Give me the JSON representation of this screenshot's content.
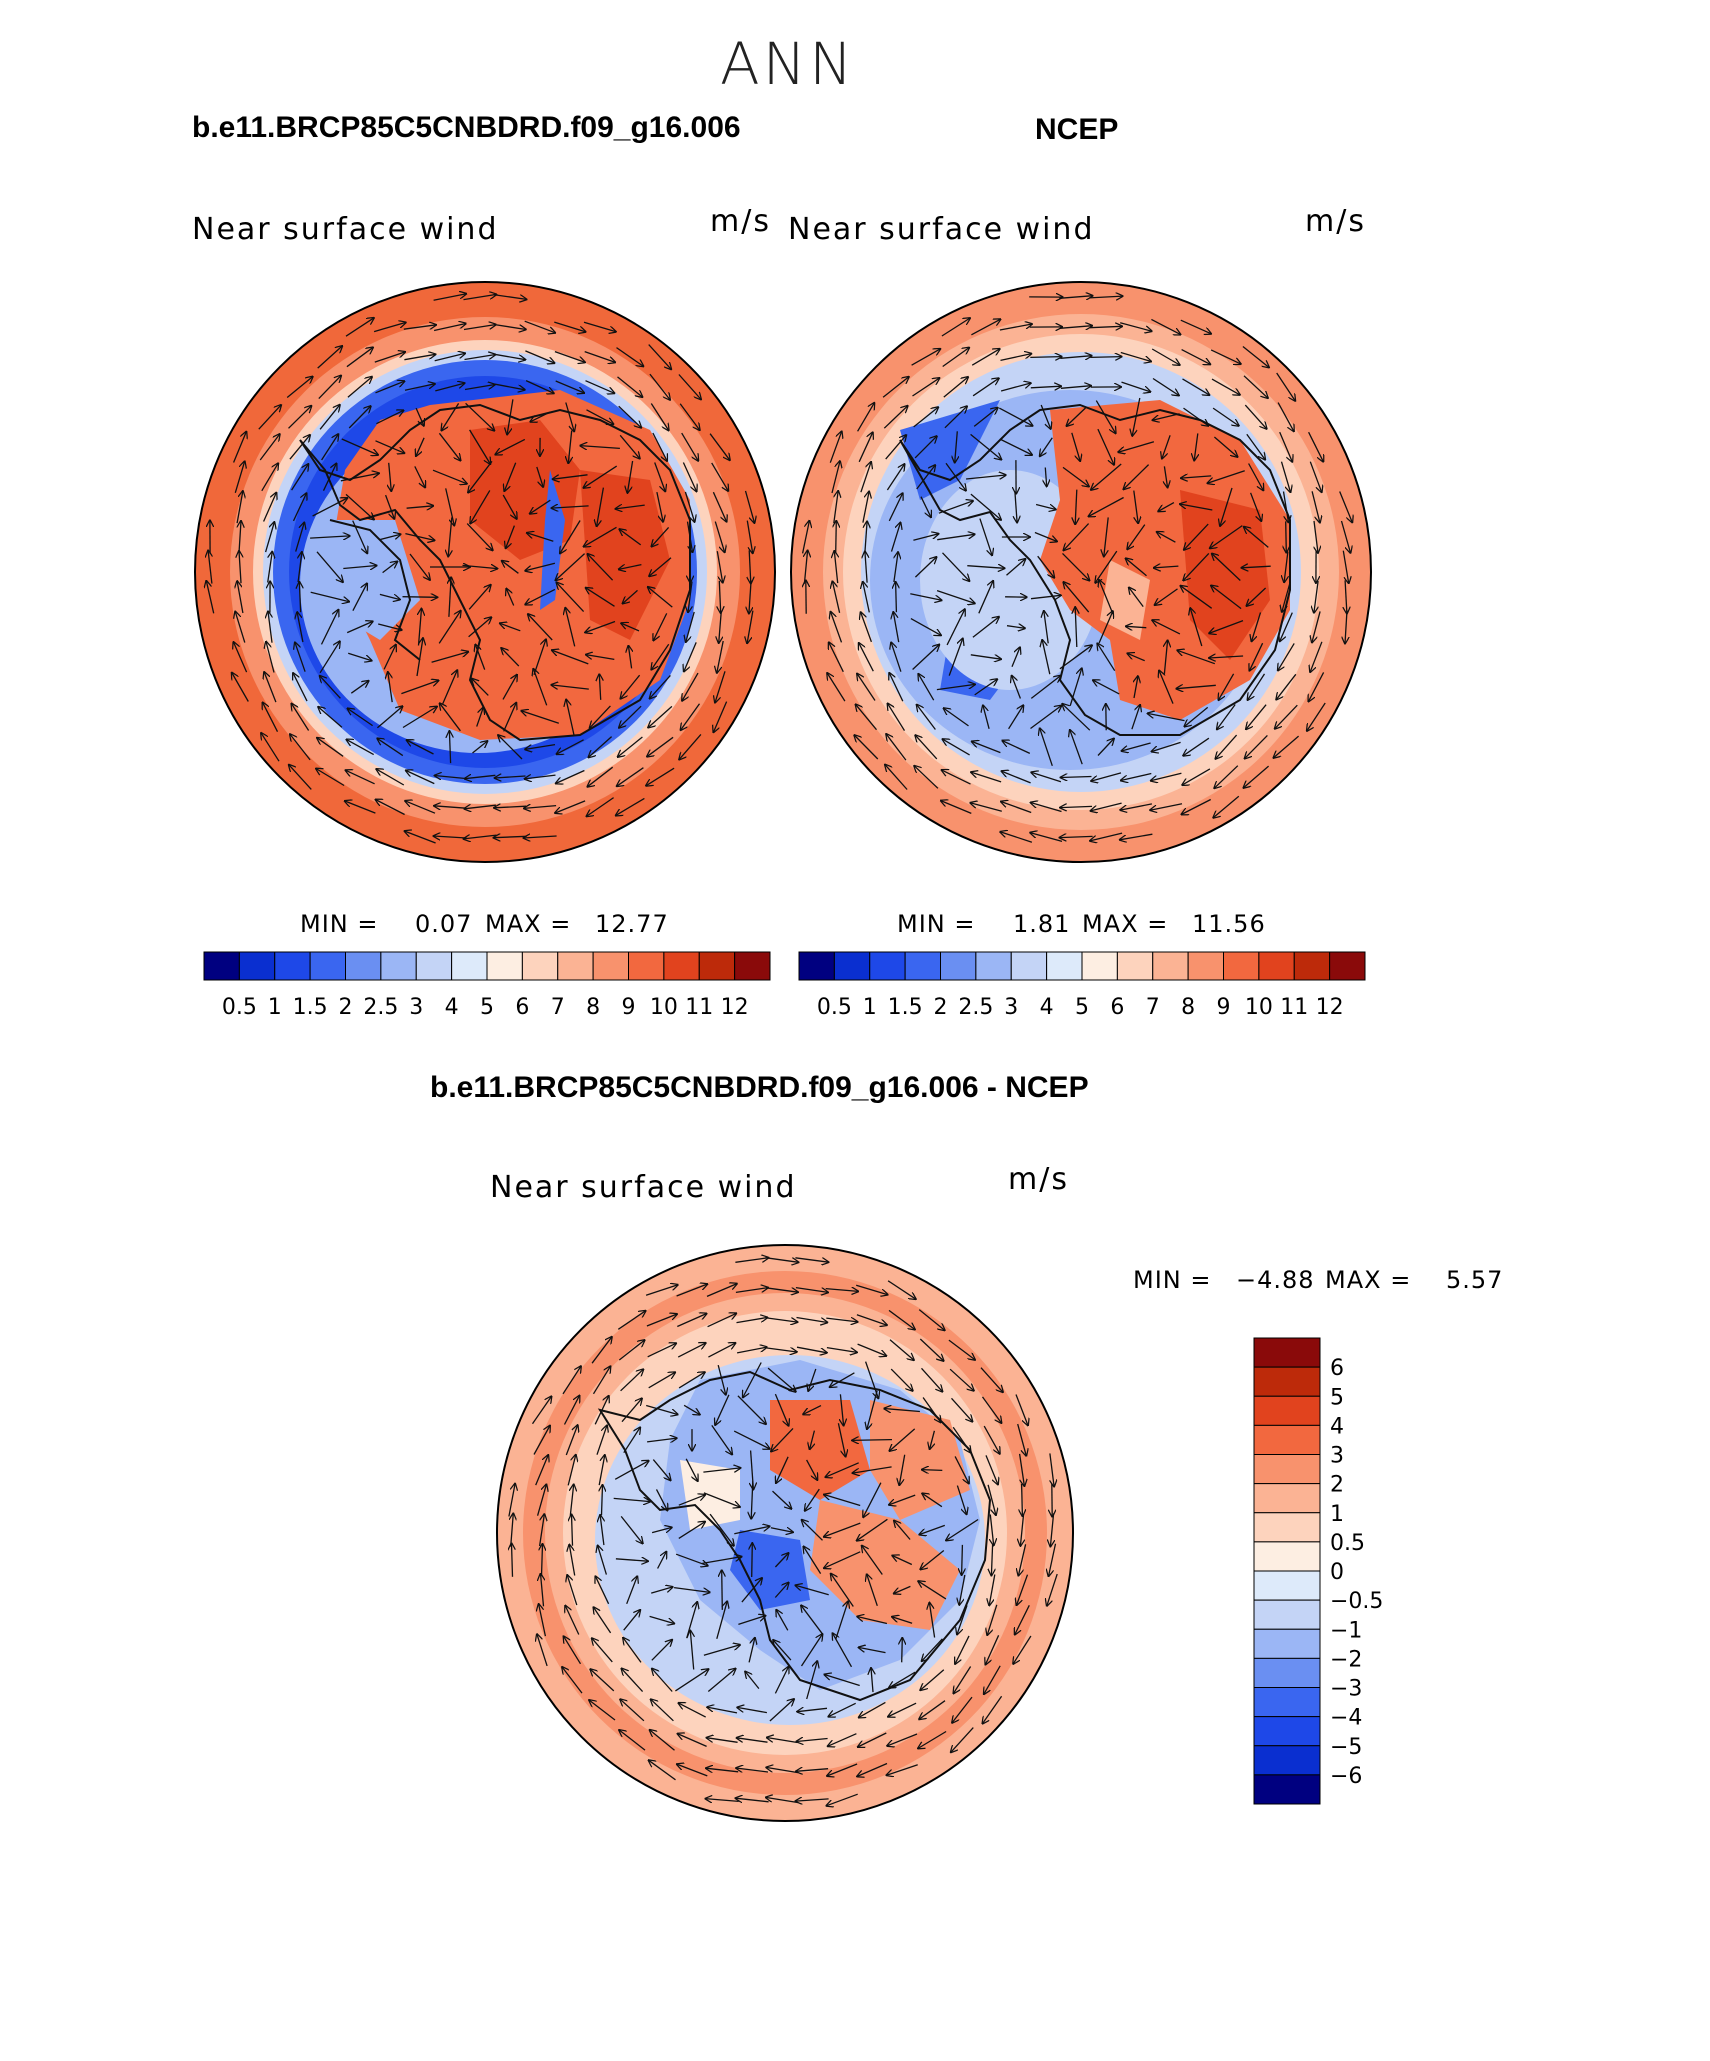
{
  "figure": {
    "season": "ANN",
    "colors": [
      "#000080",
      "#0a2fd0",
      "#1e48e8",
      "#3a66f0",
      "#6a8ff2",
      "#9bb6f5",
      "#c4d4f6",
      "#ddeafa",
      "#fdeee2",
      "#fdd3bd",
      "#fbb394",
      "#f8926d",
      "#f2683f",
      "#e1431e",
      "#bd2a0a",
      "#8a0a0a"
    ]
  },
  "panels": [
    {
      "title": "b.e11.BRCP85C5CNBDRD.f09_g16.006",
      "field_label": "Near surface wind",
      "units": "m/s",
      "min_label": "MIN =",
      "min_value": "0.07",
      "max_label": "MAX =",
      "max_value": "12.77",
      "colorbar_labels": [
        "0.5",
        "1",
        "1.5",
        "2",
        "2.5",
        "3",
        "4",
        "5",
        "6",
        "7",
        "8",
        "9",
        "10",
        "11",
        "12"
      ]
    },
    {
      "title": "NCEP",
      "field_label": "Near surface wind",
      "units": "m/s",
      "min_label": "MIN =",
      "min_value": "1.81",
      "max_label": "MAX =",
      "max_value": "11.56",
      "colorbar_labels": [
        "0.5",
        "1",
        "1.5",
        "2",
        "2.5",
        "3",
        "4",
        "5",
        "6",
        "7",
        "8",
        "9",
        "10",
        "11",
        "12"
      ]
    },
    {
      "title": "b.e11.BRCP85C5CNBDRD.f09_g16.006 - NCEP",
      "field_label": "Near surface wind",
      "units": "m/s",
      "min_label": "MIN =",
      "min_value": "−4.88",
      "max_label": "MAX =",
      "max_value": "5.57",
      "colorbar_labels": [
        "6",
        "5",
        "4",
        "3",
        "2",
        "1",
        "0.5",
        "0",
        "−0.5",
        "−1",
        "−2",
        "−3",
        "−4",
        "−5",
        "−6"
      ]
    }
  ]
}
